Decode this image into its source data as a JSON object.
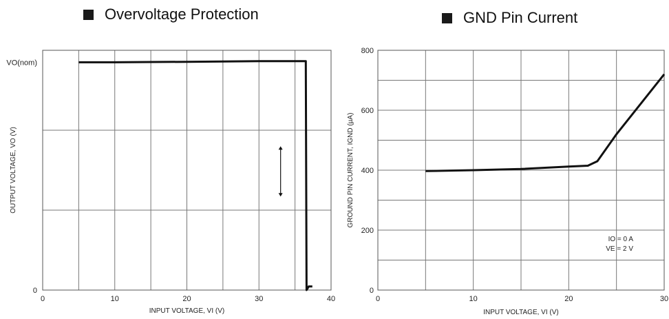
{
  "headings": {
    "left": "Overvoltage Protection",
    "right": "GND Pin Current"
  },
  "chart_data": [
    {
      "type": "line",
      "title": "Overvoltage Protection",
      "xlabel": "INPUT VOLTAGE, VI (V)",
      "ylabel": "OUTPUT VOLTAGE, VO (V)",
      "xlim": [
        0,
        40
      ],
      "ylim": [
        0,
        1
      ],
      "x_ticks": [
        "0",
        "10",
        "20",
        "30",
        "40"
      ],
      "y_ticks": [
        {
          "label": "0",
          "value": 0
        },
        {
          "label": "VO(nom)",
          "value": 0.95
        }
      ],
      "grid": true,
      "series": [
        {
          "x": [
            5,
            10,
            20,
            30,
            36.5,
            36.6,
            36.9,
            37.4
          ],
          "y": [
            0.95,
            0.95,
            0.952,
            0.955,
            0.955,
            0.0,
            0.015,
            0.015
          ]
        }
      ],
      "annotations": [
        {
          "type": "double-arrow",
          "x": 33,
          "y_from": 0.39,
          "y_to": 0.6
        }
      ]
    },
    {
      "type": "line",
      "title": "GND Pin Current",
      "xlabel": "INPUT VOLTAGE, VI (V)",
      "ylabel": "GROUND PIN CURRENT, IGND (µA)",
      "xlim": [
        0,
        30
      ],
      "ylim": [
        0,
        800
      ],
      "x_ticks": [
        "0",
        "10",
        "20",
        "30"
      ],
      "y_ticks": [
        "0",
        "200",
        "400",
        "600",
        "800"
      ],
      "grid": true,
      "series": [
        {
          "x": [
            5,
            10,
            15,
            20,
            22,
            23,
            25,
            30
          ],
          "y": [
            397,
            400,
            404,
            412,
            415,
            430,
            520,
            720
          ]
        }
      ],
      "annotations": [
        "IO = 0 A",
        "VE = 2 V"
      ]
    }
  ]
}
